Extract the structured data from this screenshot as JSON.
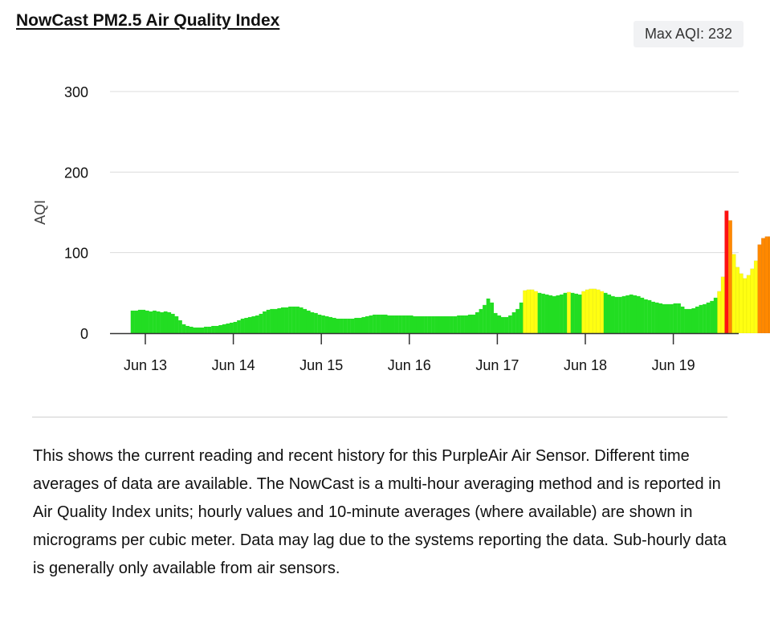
{
  "header": {
    "title": "NowCast PM2.5 Air Quality Index",
    "max_badge": "Max AQI: 232"
  },
  "description": "This shows the current reading and recent history for this PurpleAir Air Sensor. Different time averages of data are available. The NowCast is a multi-hour averaging method and is reported in Air Quality Index units; hourly values and 10-minute averages (where available) are shown in micrograms per cubic meter. Data may lag due to the systems reporting the data. Sub-hourly data is generally only available from air sensors.",
  "chart_data": {
    "type": "bar",
    "title": "NowCast PM2.5 Air Quality Index",
    "ylabel": "AQI",
    "xlabel": "",
    "ylim": [
      0,
      300
    ],
    "yticks": [
      0,
      100,
      200,
      300
    ],
    "xticks": [
      "Jun 13",
      "Jun 14",
      "Jun 15",
      "Jun 16",
      "Jun 17",
      "Jun 18",
      "Jun 19"
    ],
    "x_start": "Jun 12 20:00",
    "interval_hours": 1,
    "grid": true,
    "colors": {
      "good": "#22dd22",
      "moderate": "#ffff11",
      "usg": "#ff8800",
      "unhealthy": "#ff1111",
      "very_unhealthy": "#8e3f96"
    },
    "values": [
      28,
      28,
      29,
      29,
      28,
      27,
      28,
      27,
      26,
      27,
      26,
      24,
      21,
      16,
      11,
      9,
      8,
      7,
      7,
      7,
      8,
      8,
      9,
      9,
      10,
      11,
      12,
      13,
      14,
      16,
      18,
      19,
      20,
      21,
      22,
      24,
      27,
      29,
      30,
      30,
      31,
      32,
      32,
      33,
      33,
      33,
      32,
      30,
      28,
      26,
      25,
      23,
      22,
      21,
      20,
      19,
      18,
      18,
      18,
      18,
      18,
      19,
      19,
      20,
      21,
      22,
      23,
      23,
      23,
      23,
      22,
      22,
      22,
      22,
      22,
      22,
      22,
      21,
      21,
      21,
      21,
      21,
      21,
      21,
      21,
      21,
      21,
      21,
      21,
      22,
      22,
      22,
      23,
      23,
      26,
      30,
      35,
      43,
      38,
      25,
      22,
      20,
      20,
      22,
      26,
      30,
      38,
      53,
      54,
      54,
      52,
      50,
      49,
      48,
      47,
      46,
      47,
      48,
      50,
      51,
      50,
      49,
      48,
      52,
      54,
      55,
      55,
      54,
      52,
      50,
      48,
      46,
      45,
      45,
      46,
      47,
      48,
      47,
      46,
      44,
      42,
      41,
      39,
      38,
      37,
      36,
      36,
      36,
      37,
      37,
      33,
      30,
      30,
      31,
      33,
      35,
      36,
      38,
      40,
      44,
      52,
      70,
      152,
      140,
      98,
      82,
      74,
      68,
      72,
      80,
      90,
      110,
      118,
      120,
      120,
      95,
      85,
      78,
      70,
      66,
      62,
      58,
      55,
      52,
      50,
      50,
      50,
      50,
      52,
      54,
      52,
      50,
      48,
      46,
      44,
      44,
      45,
      48,
      52,
      70,
      130,
      160,
      170,
      175,
      180,
      188,
      190,
      210,
      218,
      224,
      228,
      230,
      224,
      218,
      212,
      200,
      180,
      170,
      165,
      160,
      155,
      152,
      150,
      150,
      152,
      150,
      130,
      110,
      90,
      75,
      62,
      55,
      50,
      48,
      46,
      44,
      42,
      40,
      38,
      40,
      120,
      150,
      160,
      180,
      180,
      178,
      160,
      140,
      110,
      88,
      78,
      70,
      72,
      80,
      90,
      110,
      140,
      146,
      138,
      120,
      100,
      84,
      72,
      66,
      60,
      56,
      54,
      53,
      52,
      52,
      52,
      51,
      51,
      51,
      51,
      50,
      50,
      50,
      49,
      48,
      47,
      46,
      45,
      44,
      40,
      36,
      33,
      31,
      30,
      30,
      29,
      28,
      28,
      27,
      27,
      27,
      27,
      27,
      28,
      28,
      30,
      30,
      29,
      28,
      30,
      32,
      34,
      120,
      150,
      160,
      150,
      130,
      110,
      95,
      85,
      75,
      60,
      55,
      52,
      50,
      45,
      42,
      40,
      38,
      37,
      36,
      38
    ]
  }
}
